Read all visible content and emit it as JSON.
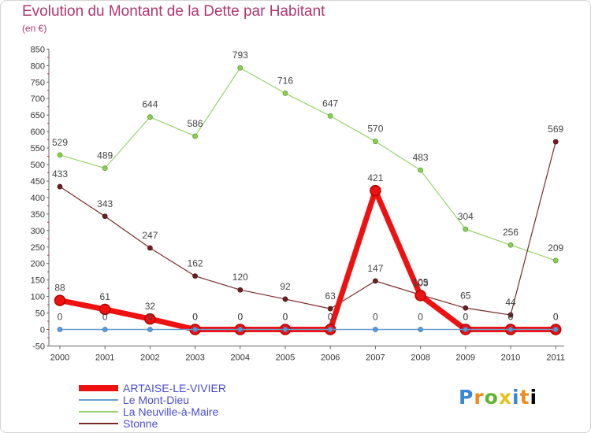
{
  "title": "Evolution du Montant de la Dette par Habitant",
  "subtitle": "(en €)",
  "logo": {
    "text": "Proxiti",
    "colors": [
      "#3a86d6",
      "#f08a1c",
      "#61b52e",
      "#e8c21a"
    ]
  },
  "chart_data": {
    "type": "line",
    "title": "Evolution du Montant de la Dette par Habitant",
    "subtitle": "(en €)",
    "x": [
      2000,
      2001,
      2002,
      2003,
      2004,
      2005,
      2006,
      2007,
      2008,
      2009,
      2010,
      2011
    ],
    "ylim": [
      -50,
      850
    ],
    "yticks": [
      -50,
      0,
      50,
      100,
      150,
      200,
      250,
      300,
      350,
      400,
      450,
      500,
      550,
      600,
      650,
      700,
      750,
      800,
      850
    ],
    "grid": false,
    "legend_position": "bottom-left",
    "series": [
      {
        "name": "ARTAISE-LE-VIVIER",
        "color": "#ee1111",
        "values": [
          88,
          61,
          32,
          0,
          0,
          0,
          0,
          421,
          103,
          0,
          0,
          0
        ]
      },
      {
        "name": "Le Mont-Dieu",
        "color": "#6a9fcf",
        "values": [
          0,
          0,
          0,
          0,
          0,
          0,
          0,
          0,
          0,
          0,
          0,
          0
        ]
      },
      {
        "name": "La Neuville-à-Maire",
        "color": "#97d36b",
        "values": [
          529,
          489,
          644,
          586,
          793,
          716,
          647,
          570,
          483,
          304,
          256,
          209
        ]
      },
      {
        "name": "Stonne",
        "color": "#7a2a2a",
        "values": [
          433,
          343,
          247,
          162,
          120,
          92,
          63,
          147,
          105,
          65,
          44,
          569
        ]
      }
    ]
  }
}
